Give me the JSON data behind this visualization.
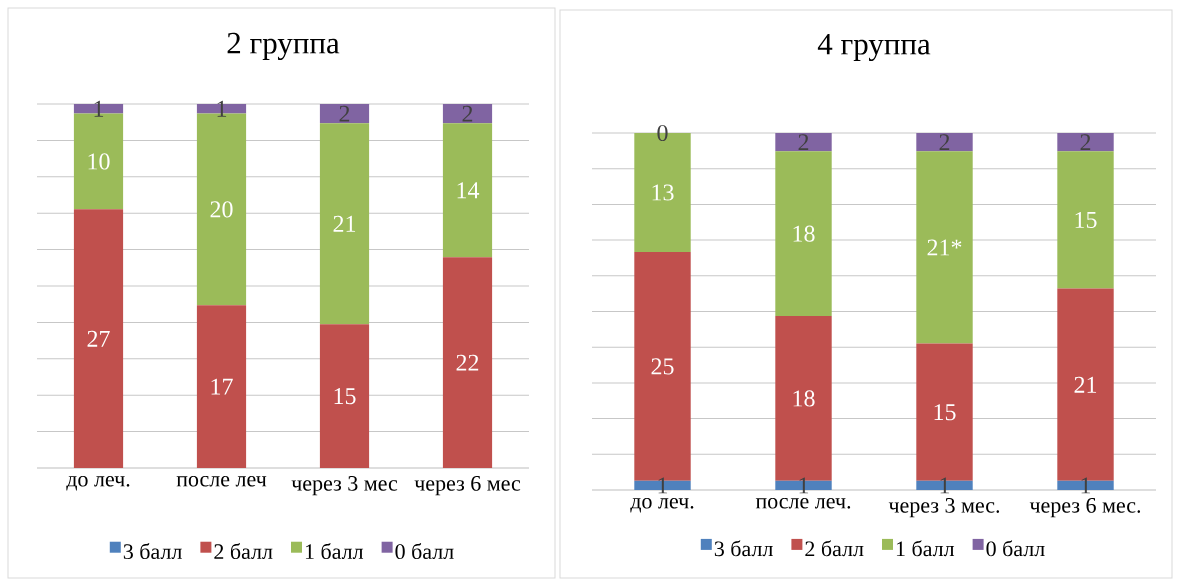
{
  "chart_data": [
    {
      "type": "bar",
      "title": "2 группа",
      "stacked": true,
      "grid": "y",
      "legend": "bottom",
      "tick_labels": "x",
      "data_labels": true,
      "categories": [
        "до леч.",
        "после леч",
        "через 3 мес",
        "через 6 мес"
      ],
      "ylim": [
        0,
        38
      ],
      "yticks": [
        {
          "value": 0,
          "label": null
        },
        {
          "value": 3.8,
          "label": null
        },
        {
          "value": 7.6,
          "label": null
        },
        {
          "value": 11.4,
          "label": null
        },
        {
          "value": 15.2,
          "label": null
        },
        {
          "value": 19,
          "label": null
        },
        {
          "value": 22.8,
          "label": null
        },
        {
          "value": 26.6,
          "label": null
        },
        {
          "value": 30.4,
          "label": null
        },
        {
          "value": 34.2,
          "label": null
        },
        {
          "value": 38,
          "label": null
        }
      ],
      "series": [
        {
          "name": "3 балл",
          "color": "#4f81bd",
          "values": [
            null,
            null,
            null,
            null
          ]
        },
        {
          "name": "2 балл",
          "color": "#c0504d",
          "values": [
            27,
            17,
            15,
            22
          ]
        },
        {
          "name": "1 балл",
          "color": "#9bbb59",
          "values": [
            10,
            20,
            21,
            14
          ]
        },
        {
          "name": "0 балл",
          "color": "#8064a2",
          "values": [
            1,
            1,
            2,
            2
          ]
        }
      ]
    },
    {
      "type": "bar",
      "title": "4 группа",
      "stacked": true,
      "grid": "y",
      "legend": "bottom",
      "tick_labels": "x",
      "categories": [
        "до леч.",
        "после леч.",
        "через 3 мес.",
        "через 6 мес."
      ],
      "ylim": [
        0,
        39
      ],
      "yticks": [
        {
          "value": 0,
          "label": null
        },
        {
          "value": 3.9,
          "label": null
        },
        {
          "value": 7.8,
          "label": null
        },
        {
          "value": 11.7,
          "label": null
        },
        {
          "value": 15.6,
          "label": null
        },
        {
          "value": 19.5,
          "label": null
        },
        {
          "value": 23.4,
          "label": null
        },
        {
          "value": 27.3,
          "label": null
        },
        {
          "value": 31.2,
          "label": null
        },
        {
          "value": 35.1,
          "label": null
        },
        {
          "value": 39,
          "label": null
        }
      ],
      "series": [
        {
          "name": "3 балл",
          "color": "#4f81bd",
          "values": [
            1,
            1,
            1,
            1
          ],
          "value_labels": [
            "1",
            "1",
            "1",
            "1"
          ]
        },
        {
          "name": "2 балл",
          "color": "#c0504d",
          "values": [
            25,
            18,
            15,
            21
          ],
          "value_labels": [
            "25",
            "18",
            "15",
            "21"
          ]
        },
        {
          "name": "1 балл",
          "color": "#9bbb59",
          "values": [
            13,
            18,
            21,
            15
          ],
          "value_labels": [
            "13",
            "18",
            "21*",
            "15"
          ]
        },
        {
          "name": "0 балл",
          "color": "#8064a2",
          "values": [
            0,
            2,
            2,
            2
          ],
          "value_labels": [
            "0",
            "2",
            "2",
            "2"
          ]
        }
      ]
    }
  ]
}
